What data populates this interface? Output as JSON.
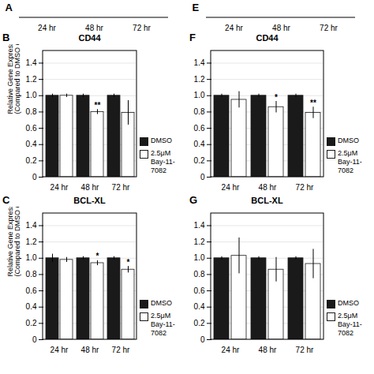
{
  "chart_data": [
    {
      "type": "bar",
      "panel_label": "A",
      "categories": [
        "24 hr",
        "48 hr",
        "72 hr"
      ],
      "tick_labels": "x"
    },
    {
      "type": "bar",
      "panel_label": "E",
      "categories": [
        "24 hr",
        "48 hr",
        "72 hr"
      ],
      "tick_labels": "x"
    },
    {
      "type": "bar",
      "panel_label": "B",
      "title": "CD44",
      "ylabel": "Relative Gene Expression\n(Compared to DMSO Control)",
      "categories": [
        "24 hr",
        "48 hr",
        "72 hr"
      ],
      "series": [
        {
          "name": "DMSO",
          "color": "#1a1a1a",
          "values": [
            1.0,
            1.0,
            1.0
          ],
          "errors": [
            0.02,
            0.02,
            0.02
          ]
        },
        {
          "name": "2.5μM\nBay-11-7082",
          "color": "#ffffff",
          "values": [
            1.0,
            0.8,
            0.79
          ],
          "errors": [
            0.02,
            0.03,
            0.15
          ],
          "significance": [
            null,
            "**",
            null
          ]
        }
      ],
      "ylim": [
        0,
        1.55
      ],
      "yticks": [
        0,
        0.2,
        0.4,
        0.6,
        0.8,
        {
          "value": 1.0,
          "label": "1.0"
        },
        1.2,
        1.4
      ],
      "grid": true,
      "legend": "right"
    },
    {
      "type": "bar",
      "panel_label": "F",
      "title": "CD44",
      "categories": [
        "24 hr",
        "48 hr",
        "72 hr"
      ],
      "series": [
        {
          "name": "DMSO",
          "color": "#1a1a1a",
          "values": [
            1.0,
            1.0,
            1.0
          ],
          "errors": [
            0.02,
            0.02,
            0.02
          ]
        },
        {
          "name": "2.5μM\nBay-11-7082",
          "color": "#ffffff",
          "values": [
            0.95,
            0.86,
            0.79
          ],
          "errors": [
            0.1,
            0.07,
            0.07
          ],
          "significance": [
            null,
            "*",
            "**"
          ]
        }
      ],
      "ylim": [
        0,
        1.55
      ],
      "yticks": [
        0,
        0.2,
        0.4,
        0.6,
        0.8,
        {
          "value": 1.0,
          "label": "1.0"
        },
        1.2,
        1.4
      ],
      "grid": true,
      "legend": "right"
    },
    {
      "type": "bar",
      "panel_label": "C",
      "title": "BCL-XL",
      "ylabel": "Relative Gene Expression\n(Compared to DMSO Control)",
      "categories": [
        "24 hr",
        "48 hr",
        "72 hr"
      ],
      "series": [
        {
          "name": "DMSO",
          "color": "#1a1a1a",
          "values": [
            1.0,
            1.0,
            1.0
          ],
          "errors": [
            0.05,
            0.02,
            0.02
          ]
        },
        {
          "name": "2.5μM\nBay-11-7082",
          "color": "#ffffff",
          "values": [
            0.98,
            0.94,
            0.86
          ],
          "errors": [
            0.03,
            0.03,
            0.04
          ],
          "significance": [
            null,
            "*",
            "*"
          ]
        }
      ],
      "ylim": [
        0,
        1.55
      ],
      "yticks": [
        0,
        0.2,
        0.4,
        0.6,
        0.8,
        {
          "value": 1.0,
          "label": "1.0"
        },
        1.2,
        1.4
      ],
      "grid": true,
      "legend": "right"
    },
    {
      "type": "bar",
      "panel_label": "G",
      "title": "BCL-XL",
      "categories": [
        "24 hr",
        "48 hr",
        "72 hr"
      ],
      "series": [
        {
          "name": "DMSO",
          "color": "#1a1a1a",
          "values": [
            1.0,
            1.0,
            1.0
          ],
          "errors": [
            0.02,
            0.02,
            0.02
          ]
        },
        {
          "name": "2.5μM\nBay-11-7082",
          "color": "#ffffff",
          "values": [
            1.03,
            0.86,
            0.93
          ],
          "errors": [
            0.22,
            0.15,
            0.18
          ]
        }
      ],
      "ylim": [
        0,
        1.55
      ],
      "yticks": [
        0,
        0.2,
        0.4,
        0.6,
        0.8,
        {
          "value": 1.0,
          "label": "1.0"
        },
        1.2,
        1.4
      ],
      "grid": true,
      "legend": "right"
    }
  ]
}
